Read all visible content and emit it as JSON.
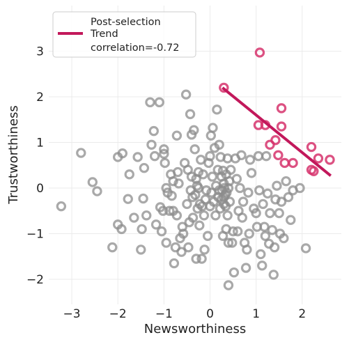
{
  "chart_data": {
    "type": "scatter",
    "title": "",
    "xlabel": "Newsworthiness",
    "ylabel": "Trustworthiness",
    "xlim": [
      -3.5,
      2.85
    ],
    "ylim": [
      -2.55,
      4.0
    ],
    "x_ticks": [
      -3,
      -2,
      -1,
      0,
      1,
      2
    ],
    "y_ticks": [
      -2,
      -1,
      0,
      1,
      2,
      3
    ],
    "x_tick_labels": [
      "−3",
      "−2",
      "−1",
      "0",
      "1",
      "2"
    ],
    "y_tick_labels": [
      "−2",
      "−1",
      "0",
      "1",
      "2",
      "3"
    ],
    "grid": true,
    "legend_position": "top-left",
    "colors": {
      "unselected": "#8c8c8c",
      "selected": "#d6336c",
      "trend": "#c2185b"
    },
    "series": [
      {
        "name": "",
        "role": "unselected",
        "points": [
          [
            -3.23,
            -0.4
          ],
          [
            -2.8,
            0.77
          ],
          [
            -2.55,
            0.13
          ],
          [
            -2.45,
            -0.07
          ],
          [
            -2.12,
            -1.3
          ],
          [
            -2.0,
            -0.8
          ],
          [
            -2.0,
            0.68
          ],
          [
            -1.92,
            -0.9
          ],
          [
            -1.9,
            0.76
          ],
          [
            -1.78,
            -0.24
          ],
          [
            -1.75,
            0.3
          ],
          [
            -1.65,
            -0.65
          ],
          [
            -1.57,
            0.68
          ],
          [
            -1.5,
            -1.35
          ],
          [
            -1.48,
            -0.9
          ],
          [
            -1.45,
            -0.23
          ],
          [
            -1.43,
            0.44
          ],
          [
            -1.38,
            -0.6
          ],
          [
            -1.3,
            1.88
          ],
          [
            -1.27,
            0.95
          ],
          [
            -1.22,
            1.25
          ],
          [
            -1.2,
            0.7
          ],
          [
            -1.17,
            -0.8
          ],
          [
            -1.1,
            1.88
          ],
          [
            -1.08,
            -0.42
          ],
          [
            -1.05,
            -0.95
          ],
          [
            -1.02,
            -0.5
          ],
          [
            -1.0,
            0.75
          ],
          [
            -1.0,
            0.85
          ],
          [
            -0.98,
            0.55
          ],
          [
            -0.95,
            0.0
          ],
          [
            -0.95,
            -1.2
          ],
          [
            -0.92,
            -0.1
          ],
          [
            -0.88,
            -0.5
          ],
          [
            -0.85,
            0.3
          ],
          [
            -0.83,
            -0.17
          ],
          [
            -0.8,
            -0.5
          ],
          [
            -0.8,
            0.15
          ],
          [
            -0.78,
            -1.65
          ],
          [
            -0.75,
            -1.3
          ],
          [
            -0.72,
            1.15
          ],
          [
            -0.72,
            -0.6
          ],
          [
            -0.7,
            0.35
          ],
          [
            -0.68,
            0.1
          ],
          [
            -0.65,
            -1.1
          ],
          [
            -0.62,
            -1.4
          ],
          [
            -0.6,
            -0.85
          ],
          [
            -0.58,
            -1.0
          ],
          [
            -0.55,
            0.55
          ],
          [
            -0.52,
            2.05
          ],
          [
            -0.5,
            -0.35
          ],
          [
            -0.48,
            0.4
          ],
          [
            -0.47,
            -1.3
          ],
          [
            -0.45,
            -0.75
          ],
          [
            -0.43,
            1.62
          ],
          [
            -0.42,
            -0.05
          ],
          [
            -0.4,
            1.17
          ],
          [
            -0.4,
            0.25
          ],
          [
            -0.38,
            -0.2
          ],
          [
            -0.37,
            -0.65
          ],
          [
            -0.35,
            1.27
          ],
          [
            -0.33,
            0.85
          ],
          [
            -0.32,
            -0.15
          ],
          [
            -0.3,
            -1.55
          ],
          [
            -0.28,
            0.05
          ],
          [
            -0.27,
            -0.45
          ],
          [
            -0.25,
            0.35
          ],
          [
            -0.23,
            -0.82
          ],
          [
            -0.22,
            -0.35
          ],
          [
            -0.2,
            0.62
          ],
          [
            -0.18,
            -1.55
          ],
          [
            -0.17,
            -0.4
          ],
          [
            -0.15,
            0.3
          ],
          [
            -0.13,
            -0.6
          ],
          [
            -0.12,
            -1.35
          ],
          [
            -0.1,
            -0.25
          ],
          [
            -0.08,
            -0.05
          ],
          [
            -0.05,
            -1.05
          ],
          [
            -0.03,
            0.55
          ],
          [
            0.0,
            0.7
          ],
          [
            0.0,
            -0.4
          ],
          [
            0.02,
            1.15
          ],
          [
            0.03,
            -0.1
          ],
          [
            0.05,
            0.25
          ],
          [
            0.06,
            1.32
          ],
          [
            0.08,
            -0.3
          ],
          [
            0.1,
            0.88
          ],
          [
            0.12,
            -0.6
          ],
          [
            0.13,
            0.05
          ],
          [
            0.15,
            1.72
          ],
          [
            0.17,
            0.4
          ],
          [
            0.18,
            -0.2
          ],
          [
            0.2,
            0.95
          ],
          [
            0.2,
            -0.05
          ],
          [
            0.22,
            -0.45
          ],
          [
            0.23,
            0.68
          ],
          [
            0.25,
            -0.25
          ],
          [
            0.26,
            -0.05
          ],
          [
            0.28,
            -1.05
          ],
          [
            0.28,
            0.38
          ],
          [
            0.3,
            -0.35
          ],
          [
            0.31,
            0.0
          ],
          [
            0.33,
            -0.15
          ],
          [
            0.35,
            0.3
          ],
          [
            0.35,
            -0.9
          ],
          [
            0.38,
            -0.6
          ],
          [
            0.38,
            0.65
          ],
          [
            0.4,
            -1.2
          ],
          [
            0.4,
            -2.13
          ],
          [
            0.42,
            0.15
          ],
          [
            0.43,
            -0.3
          ],
          [
            0.45,
            0.4
          ],
          [
            0.48,
            -1.2
          ],
          [
            0.5,
            -0.95
          ],
          [
            0.52,
            -1.85
          ],
          [
            0.55,
            0.65
          ],
          [
            0.58,
            0.2
          ],
          [
            0.6,
            -0.95
          ],
          [
            0.62,
            -0.5
          ],
          [
            0.65,
            0.0
          ],
          [
            0.68,
            0.72
          ],
          [
            0.7,
            -0.65
          ],
          [
            0.72,
            -0.3
          ],
          [
            0.75,
            -1.2
          ],
          [
            0.78,
            -1.75
          ],
          [
            0.8,
            -1.35
          ],
          [
            0.83,
            -0.1
          ],
          [
            0.85,
            -1.0
          ],
          [
            0.87,
            0.62
          ],
          [
            0.9,
            0.33
          ],
          [
            0.95,
            -0.45
          ],
          [
            1.0,
            -0.55
          ],
          [
            1.02,
            -0.85
          ],
          [
            1.05,
            0.7
          ],
          [
            1.07,
            -0.05
          ],
          [
            1.1,
            -1.45
          ],
          [
            1.13,
            -1.7
          ],
          [
            1.15,
            -0.35
          ],
          [
            1.18,
            -0.85
          ],
          [
            1.2,
            -1.05
          ],
          [
            1.22,
            0.7
          ],
          [
            1.25,
            -0.12
          ],
          [
            1.28,
            -1.22
          ],
          [
            1.3,
            -0.55
          ],
          [
            1.35,
            -0.92
          ],
          [
            1.38,
            -1.9
          ],
          [
            1.4,
            -1.3
          ],
          [
            1.42,
            -0.25
          ],
          [
            1.45,
            0.05
          ],
          [
            1.5,
            -0.55
          ],
          [
            1.52,
            -1.0
          ],
          [
            1.55,
            -0.3
          ],
          [
            1.6,
            -1.1
          ],
          [
            1.65,
            0.15
          ],
          [
            1.7,
            -0.2
          ],
          [
            1.75,
            -0.7
          ],
          [
            1.8,
            -0.05
          ],
          [
            1.95,
            0.0
          ],
          [
            2.08,
            -1.32
          ],
          [
            -0.25,
            0.0
          ],
          [
            -0.3,
            0.2
          ],
          [
            0.3,
            -0.2
          ],
          [
            0.3,
            0.1
          ],
          [
            0.34,
            -0.4
          ],
          [
            0.36,
            -0.1
          ],
          [
            0.4,
            0.0
          ],
          [
            0.25,
            0.25
          ]
        ]
      },
      {
        "name": "",
        "role": "selected",
        "points": [
          [
            0.3,
            2.2
          ],
          [
            1.08,
            2.97
          ],
          [
            1.55,
            1.75
          ],
          [
            1.05,
            1.38
          ],
          [
            1.2,
            1.38
          ],
          [
            1.55,
            1.35
          ],
          [
            1.42,
            1.05
          ],
          [
            1.3,
            0.95
          ],
          [
            1.48,
            0.72
          ],
          [
            1.62,
            0.55
          ],
          [
            1.8,
            0.55
          ],
          [
            2.2,
            0.9
          ],
          [
            2.35,
            0.65
          ],
          [
            2.6,
            0.62
          ],
          [
            2.2,
            0.4
          ],
          [
            2.25,
            0.37
          ]
        ]
      }
    ],
    "trend_line": {
      "x": [
        0.27,
        2.62
      ],
      "y": [
        2.2,
        0.27
      ]
    },
    "legend": {
      "line1": "Post-selection",
      "line2": "Trend",
      "line3": "correlation=-0.72"
    }
  }
}
